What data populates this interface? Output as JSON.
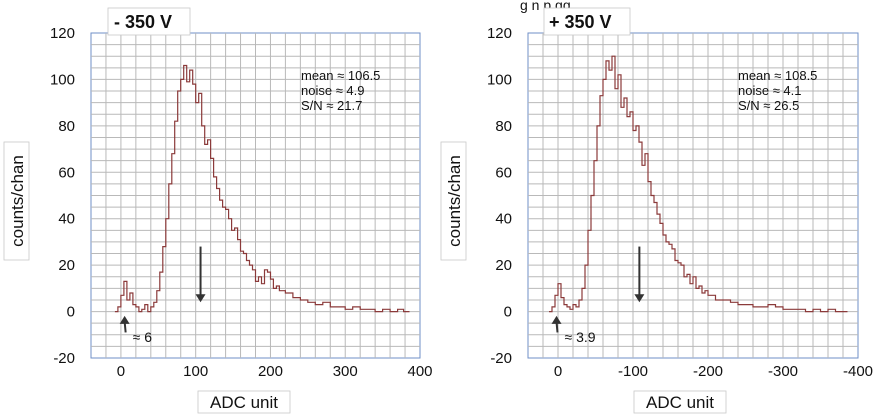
{
  "top_text": "g      n     p      gg",
  "chart_data": [
    {
      "type": "line",
      "title": "- 350 V",
      "xlabel": "ADC unit",
      "ylabel": "counts/chan",
      "xlim": [
        -40,
        400
      ],
      "ylim": [
        -20,
        120
      ],
      "x_ticks": [
        "0",
        "100",
        "200",
        "300",
        "400"
      ],
      "x_tick_values": [
        0,
        100,
        200,
        300,
        400
      ],
      "y_ticks": [
        "120",
        "100",
        "80",
        "60",
        "40",
        "20",
        "0",
        "-20"
      ],
      "y_tick_values": [
        120,
        100,
        80,
        60,
        40,
        20,
        0,
        -20
      ],
      "grid": true,
      "stats": [
        "mean ≈ 106.5",
        "noise ≈ 4.9",
        "S/N ≈ 21.7"
      ],
      "annotations": [
        {
          "text": "≈ 6",
          "arrow_at_x": 5,
          "arrow_dir": "up"
        },
        {
          "text": "",
          "arrow_at_x": 106.5,
          "arrow_dir": "down"
        }
      ],
      "x": [
        -8,
        -4,
        0,
        4,
        8,
        12,
        16,
        20,
        24,
        28,
        32,
        36,
        40,
        44,
        48,
        52,
        56,
        60,
        64,
        68,
        72,
        76,
        80,
        84,
        88,
        92,
        96,
        100,
        104,
        108,
        112,
        116,
        120,
        124,
        128,
        132,
        136,
        140,
        144,
        148,
        152,
        156,
        160,
        164,
        168,
        172,
        176,
        180,
        184,
        188,
        192,
        196,
        200,
        204,
        208,
        212,
        216,
        220,
        230,
        240,
        250,
        260,
        270,
        280,
        290,
        300,
        310,
        320,
        330,
        340,
        350,
        360,
        370,
        378
      ],
      "values": [
        0,
        2,
        7,
        13,
        5,
        8,
        3,
        2,
        0,
        1,
        3,
        0,
        2,
        4,
        9,
        17,
        28,
        40,
        55,
        68,
        82,
        95,
        100,
        106,
        99,
        104,
        98,
        90,
        94,
        80,
        72,
        74,
        66,
        58,
        53,
        48,
        45,
        44,
        40,
        35,
        36,
        31,
        26,
        25,
        22,
        20,
        18,
        13,
        15,
        12,
        18,
        17,
        14,
        10,
        11,
        9,
        9,
        8,
        6,
        5,
        4,
        3,
        4,
        2,
        2,
        1,
        2,
        1,
        1,
        0,
        1,
        0,
        1,
        0
      ]
    },
    {
      "type": "line",
      "title": "+ 350 V",
      "xlabel": "ADC unit",
      "ylabel": "counts/chan",
      "xlim": [
        40,
        -400
      ],
      "ylim": [
        -20,
        120
      ],
      "x_ticks": [
        "0",
        "-100",
        "-200",
        "-300",
        "-400"
      ],
      "x_tick_values": [
        0,
        -100,
        -200,
        -300,
        -400
      ],
      "y_ticks": [
        "120",
        "100",
        "80",
        "60",
        "40",
        "20",
        "0",
        "-20"
      ],
      "y_tick_values": [
        120,
        100,
        80,
        60,
        40,
        20,
        0,
        -20
      ],
      "grid": true,
      "stats": [
        "mean ≈ 108.5",
        "noise ≈ 4.1",
        "S/N ≈ 26.5"
      ],
      "annotations": [
        {
          "text": "≈ 3.9",
          "arrow_at_x": 2,
          "arrow_dir": "up"
        },
        {
          "text": "",
          "arrow_at_x": -108.5,
          "arrow_dir": "down"
        }
      ],
      "x": [
        12,
        8,
        4,
        0,
        -4,
        -8,
        -12,
        -16,
        -20,
        -24,
        -28,
        -32,
        -36,
        -40,
        -44,
        -48,
        -52,
        -56,
        -60,
        -64,
        -68,
        -72,
        -76,
        -80,
        -84,
        -88,
        -92,
        -96,
        -100,
        -104,
        -108,
        -112,
        -116,
        -120,
        -124,
        -128,
        -132,
        -136,
        -140,
        -144,
        -148,
        -152,
        -156,
        -160,
        -164,
        -168,
        -172,
        -176,
        -180,
        -184,
        -188,
        -192,
        -196,
        -200,
        -210,
        -220,
        -230,
        -240,
        -250,
        -260,
        -270,
        -280,
        -290,
        -300,
        -310,
        -320,
        -330,
        -340,
        -350,
        -360,
        -370,
        -378
      ],
      "values": [
        0,
        2,
        7,
        12,
        6,
        3,
        2,
        1,
        3,
        2,
        5,
        10,
        20,
        35,
        50,
        65,
        80,
        93,
        100,
        108,
        104,
        110,
        96,
        102,
        88,
        92,
        84,
        86,
        78,
        80,
        73,
        63,
        68,
        56,
        50,
        47,
        42,
        38,
        33,
        30,
        29,
        27,
        22,
        21,
        20,
        15,
        16,
        12,
        15,
        10,
        11,
        8,
        9,
        7,
        5,
        5,
        4,
        3,
        3,
        2,
        2,
        3,
        2,
        1,
        1,
        1,
        0,
        1,
        0,
        1,
        0,
        0
      ]
    }
  ]
}
